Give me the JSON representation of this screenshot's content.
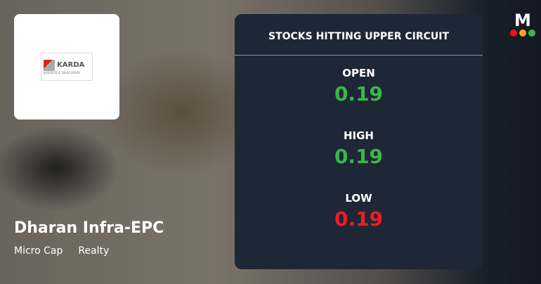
{
  "company": {
    "name": "Dharan Infra-EPC",
    "tags": [
      "Micro Cap",
      "Realty"
    ],
    "logo_text": "KARDA",
    "logo_sub": "BUILDERS & DEVELOPERS"
  },
  "panel": {
    "title": "STOCKS HITTING UPPER CIRCUIT",
    "rows": [
      {
        "label": "OPEN",
        "value": "0.19",
        "color": "#3cb54a"
      },
      {
        "label": "HIGH",
        "value": "0.19",
        "color": "#3cb54a"
      },
      {
        "label": "LOW",
        "value": "0.19",
        "color": "#ee1c25"
      }
    ]
  },
  "brand": {
    "letter": "M",
    "dots": [
      "#e8141c",
      "#f5a623",
      "#3cb54a"
    ]
  }
}
